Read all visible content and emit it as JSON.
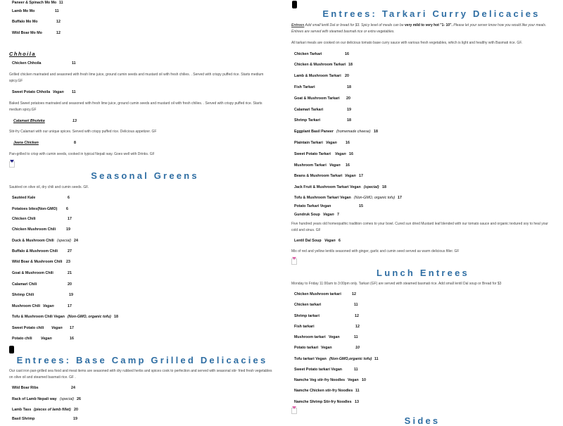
{
  "left": {
    "momo": [
      {
        "name": "Paneer & Spinach Mo Mo",
        "price": "11"
      },
      {
        "name": "Lamb Mo Mo",
        "price": "11"
      },
      {
        "name": "Buffalo Mo Mo",
        "price": "12"
      },
      {
        "name": "Wild Boar Mo Mo",
        "price": "12"
      }
    ],
    "chhoila": {
      "heading": "Chhoila",
      "items": [
        {
          "name": "Chicken Chhoila",
          "price": "11",
          "desc": "Grilled  chicken  marinated  and  seasoned  with fresh  lime  juice,  ground  cumin  seeds  and mustard oil with fresh chilies. . Served with crispy puffed rice. Starts medium spicy.GF"
        },
        {
          "name": "Sweet Potato Chhoila",
          "tag": "Vegan",
          "price": "11",
          "desc": "Baked Sweet potatoes  marinated and seasoned with  fresh lime juice,  ground cumin seeds  and mustard oil with fresh chilies. . Served with crispy puffed rice. Starts medium spicy.GF"
        },
        {
          "name": "Calamari Bhuteka",
          "price": "13",
          "desc": "Stir-fry Calamari with our unique spices. Served with crispy puffed rice. Delicious appetizer. GF"
        },
        {
          "name": "Jeera Chicken",
          "price": "8",
          "desc": "Pan-grilled  to crisp with  cumin seeds,  cooked in typical Nepali way. Goes well with Drinks. GF"
        }
      ]
    },
    "greens": {
      "heading": "Seasonal Greens",
      "desc": "Sautéed on olive oil, dry chili and cumin seeds. GF.",
      "items": [
        {
          "name": "Sautéed Kale",
          "price": "6"
        },
        {
          "name": "Potatoes bites(Non-GMO)",
          "price": "6"
        },
        {
          "name": "Chicken Chili",
          "price": "17"
        },
        {
          "name": "Chicken Mushroom Chili",
          "price": "19"
        },
        {
          "name": "Duck & Mushroom Chili",
          "tag": "(special)",
          "price": "24"
        },
        {
          "name": "Buffalo & Mushroom Chili",
          "price": "27"
        },
        {
          "name": "Wild Boar & Mushroom Chili",
          "price": "23"
        },
        {
          "name": "Goat & Mushroom Chili",
          "price": "21"
        },
        {
          "name": "Calamari Chili",
          "price": "20"
        },
        {
          "name": "Shrimp Chili",
          "price": "19"
        },
        {
          "name": "Mushroom Chili",
          "tag": "Vegan",
          "price": "17"
        },
        {
          "name": "Tofu & Mushroom Chili Vegan",
          "tag": "(Non-GMO, organic tofu)",
          "price": "18"
        },
        {
          "name": "Sweet Potato chili",
          "tag": "Vegan",
          "price": "17"
        },
        {
          "name": "Potato chili",
          "tag": "Vegan",
          "price": "16"
        }
      ]
    },
    "grilled": {
      "heading": "Entrees: Base Camp Grilled Delicacies",
      "desc": "Our cast iron pan-grilled sea food and meat items are seasoned with dry rubbed herbs and spices cook to perfection and served with seasonal stir- fried fresh vegetables on olive oil and steamed basmati rice. GF .",
      "items": [
        {
          "name": "Wild Boar Ribs",
          "price": "24"
        },
        {
          "name": "Rack of Lamb Nepali way",
          "tag": "(special)",
          "price": "26"
        },
        {
          "name": "Lamb Tass",
          "tag": "(pieces of lamb fillet)",
          "price": "20"
        },
        {
          "name": "Basil Shrimp",
          "price": "19"
        }
      ]
    }
  },
  "right": {
    "tarkari": {
      "heading": "Entrees: Tarkari Curry Delicacies",
      "note_label": "Entrees",
      "note_a": " Add small lentil Dal or bread for $3. Spicy level of meals can be ",
      "note_bold": "very mild to very hot   \"1- 10\".",
      "note_b": " Please let your server know how you would like your meals. Entrees are served with steamed basmati rice or extra vegetables.",
      "desc": "All tarkari meals are cooked on our delicious tomato base curry sauce with various fresh vegetables, which is light and healthy with Basmati rice. GF.",
      "items": [
        {
          "name": "Chicken Tarkari",
          "price": "16"
        },
        {
          "name": "Chicken & Mushroom Tarkari",
          "price": "18"
        },
        {
          "name": "Lamb & Mushroom Tarkari",
          "price": "20"
        },
        {
          "name": "Fish Tarkari",
          "price": "18"
        },
        {
          "name": "Goat & Mushroom Tarkari",
          "price": "20"
        },
        {
          "name": "Calamari Tarkari",
          "price": "19"
        },
        {
          "name": "Shrimp Tarkari",
          "price": "18"
        },
        {
          "name": "Eggplant Basil Paneer",
          "tag": "(homemade cheese)",
          "price": "18"
        },
        {
          "name": "Plaintain Tarkari",
          "tag": "Vegan",
          "price": "16"
        },
        {
          "name": "Sweet Potato Tarkari",
          "tag": "Vegan",
          "price": "16"
        },
        {
          "name": "Mushroom Tarkari",
          "tag": "Vegan",
          "price": "16"
        },
        {
          "name": "Beans & Mushroom Tarkari",
          "tag": "Vegan",
          "price": "17"
        },
        {
          "name": "Jack Fruit & Mushroom Tarkari  Vegan",
          "tag": "(special)",
          "price": "18"
        },
        {
          "name": "Tofu & Mushroom Tarkari Vegan",
          "tag": "(Non-GMO, organic tofu)",
          "price": "17"
        },
        {
          "name": "Potato Tarkari  Vegan",
          "price": "15"
        }
      ]
    },
    "soups": [
      {
        "name": "Gundruk Soup",
        "tag": "Vegan",
        "price": "7",
        "desc": "Five  hundred years old homeopathic tradition comes  to  your  bowl.  Cured  sun  dried Mustard leaf blended with  our tomato sauce and organic  textured soy to heal  your cold and sinus. GF"
      },
      {
        "name": "Lentil  Dal  Soup",
        "tag": "Vegan",
        "price": "6",
        "desc": "Mix of red and yellow lentils  seasoned  with ginger,  garlic  and  cumin  seed  served  as warm delicious filler. GF"
      }
    ],
    "lunch": {
      "heading": "Lunch Entrees",
      "desc": "Monday to Friday 11:00am to 3:00pm only.     Tarkari (GF) are served with steamed basmati rice. Add small lentil Dal soup or Bread for $3",
      "items": [
        {
          "name": "Chicken Mushroom tarkari",
          "price": "12"
        },
        {
          "name": "Chicken tarkari",
          "price": "11"
        },
        {
          "name": "Shrimp tarkari",
          "price": "12"
        },
        {
          "name": "Fish tarkari",
          "price": "12"
        },
        {
          "name": "Mushroom tarkari",
          "tag": "Vegan",
          "price": "11"
        },
        {
          "name": "Potato tarkari",
          "tag": "Vegan",
          "price": "10"
        },
        {
          "name": "Tofu tarkari  Vegan",
          "tag": "(Non-GMO,organic tofu)",
          "price": "11"
        },
        {
          "name": "Sweet Potato tarkari  Vegan",
          "price": "11"
        },
        {
          "name": "Namche Veg stir-fry Noodles",
          "tag": "Vegan",
          "price": "10"
        },
        {
          "name": "Namche Chicken stir-fry Noodles",
          "price": "11"
        },
        {
          "name": "Namche Shrimp Stir-fry Noodles",
          "price": "13"
        }
      ]
    },
    "sides_heading": "Sides"
  },
  "colors": {
    "heading": "#2f6ea3",
    "text": "#111111"
  }
}
